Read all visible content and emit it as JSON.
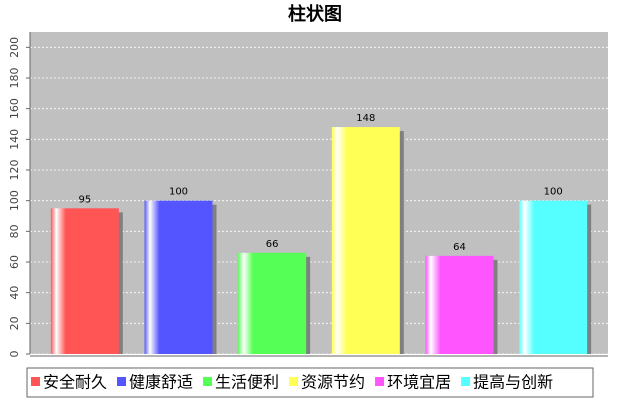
{
  "chart_data": {
    "type": "bar",
    "title": "柱状图",
    "categories": [
      "安全耐久",
      "健康舒适",
      "生活便利",
      "资源节约",
      "环境宜居",
      "提高与创新"
    ],
    "values": [
      95,
      100,
      66,
      148,
      64,
      100
    ],
    "colors": [
      "#ff5555",
      "#5555ff",
      "#55ff55",
      "#ffff55",
      "#ff55ff",
      "#55ffff"
    ],
    "ylim": [
      0,
      210
    ],
    "yticks": [
      0,
      20,
      40,
      60,
      80,
      100,
      120,
      140,
      160,
      180,
      200
    ],
    "grid": true,
    "legend": "bottom"
  }
}
